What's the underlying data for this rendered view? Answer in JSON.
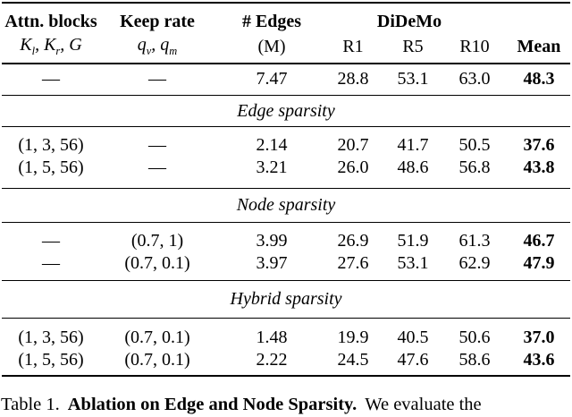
{
  "colors": {
    "text": "#000000",
    "background": "#ffffff",
    "rule": "#000000"
  },
  "table": {
    "header": {
      "attn_label": "Attn. blocks",
      "attn_math": "K_l, K_r, G",
      "keep_label": "Keep rate",
      "keep_math": "q_v, q_m",
      "edges_label": "# Edges",
      "edges_unit": "(M)",
      "dataset": "DiDeMo",
      "r1": "R1",
      "r5": "R5",
      "r10": "R10",
      "mean": "Mean"
    },
    "sections": [
      {
        "label": "",
        "rows": [
          [
            "—",
            "—",
            "7.47",
            "28.8",
            "53.1",
            "63.0",
            "48.3"
          ]
        ]
      },
      {
        "label": "Edge sparsity",
        "rows": [
          [
            "(1, 3, 56)",
            "—",
            "2.14",
            "20.7",
            "41.7",
            "50.5",
            "37.6"
          ],
          [
            "(1, 5, 56)",
            "—",
            "3.21",
            "26.0",
            "48.6",
            "56.8",
            "43.8"
          ]
        ]
      },
      {
        "label": "Node sparsity",
        "rows": [
          [
            "—",
            "(0.7, 1)",
            "3.99",
            "26.9",
            "51.9",
            "61.3",
            "46.7"
          ],
          [
            "—",
            "(0.7, 0.1)",
            "3.97",
            "27.6",
            "53.1",
            "62.9",
            "47.9"
          ]
        ]
      },
      {
        "label": "Hybrid sparsity",
        "rows": [
          [
            "(1, 3, 56)",
            "(0.7, 0.1)",
            "1.48",
            "19.9",
            "40.5",
            "50.6",
            "37.0"
          ],
          [
            "(1, 5, 56)",
            "(0.7, 0.1)",
            "2.22",
            "24.5",
            "47.6",
            "58.6",
            "43.6"
          ]
        ]
      }
    ]
  },
  "caption": {
    "prefix": "Table 1.",
    "bold": "Ablation on Edge and Node Sparsity.",
    "rest": "We evaluate the"
  }
}
